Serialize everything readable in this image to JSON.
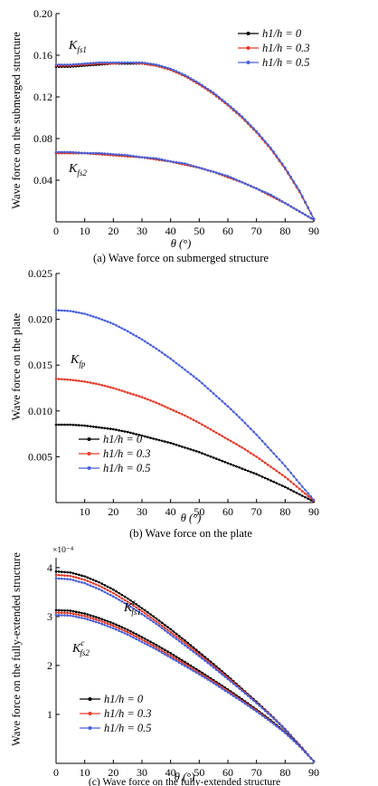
{
  "chart_data": [
    {
      "type": "line",
      "caption": "(a) Wave force on submerged structure",
      "ylabel": "Wave force on the submerged structure",
      "xlabel": "θ (°)",
      "xlim": [
        0,
        90
      ],
      "ylim": [
        0,
        0.2
      ],
      "xticks": [
        0,
        10,
        20,
        30,
        40,
        50,
        60,
        70,
        80,
        90
      ],
      "yticks": [
        0.04,
        0.08,
        0.12,
        0.16,
        0.2
      ],
      "ytick_labels": [
        "0.04",
        "0.08",
        "0.12",
        "0.16",
        "0.20"
      ],
      "grid": false,
      "legend": {
        "position": "top-right",
        "entries": [
          {
            "label": "h1/h = 0",
            "color": "#000000"
          },
          {
            "label": "h1/h = 0.3",
            "color": "#e23b2a"
          },
          {
            "label": "h1/h = 0.5",
            "color": "#4a5fd6"
          }
        ]
      },
      "annotations": [
        {
          "label": "K",
          "sub": "fs1",
          "x": 3,
          "y": 0.163
        },
        {
          "label": "K",
          "sub": "fs2",
          "x": 3,
          "y": 0.047
        }
      ],
      "x": [
        0,
        5,
        10,
        15,
        20,
        25,
        30,
        35,
        40,
        45,
        50,
        55,
        60,
        65,
        70,
        75,
        80,
        85,
        90
      ],
      "series": [
        {
          "name": "h1/h = 0",
          "group": "Kfs1",
          "color": "#000000",
          "values": [
            0.149,
            0.149,
            0.15,
            0.151,
            0.152,
            0.152,
            0.152,
            0.15,
            0.146,
            0.14,
            0.132,
            0.123,
            0.112,
            0.1,
            0.086,
            0.07,
            0.051,
            0.029,
            0.003
          ]
        },
        {
          "name": "h1/h = 0.3",
          "group": "Kfs1",
          "color": "#e23b2a",
          "values": [
            0.15,
            0.15,
            0.151,
            0.152,
            0.152,
            0.153,
            0.152,
            0.15,
            0.146,
            0.14,
            0.132,
            0.123,
            0.112,
            0.1,
            0.086,
            0.07,
            0.051,
            0.029,
            0.003
          ]
        },
        {
          "name": "h1/h = 0.5",
          "group": "Kfs1",
          "color": "#4a5fd6",
          "values": [
            0.151,
            0.151,
            0.152,
            0.153,
            0.153,
            0.153,
            0.153,
            0.151,
            0.147,
            0.141,
            0.133,
            0.124,
            0.113,
            0.101,
            0.087,
            0.071,
            0.052,
            0.03,
            0.003
          ]
        },
        {
          "name": "h1/h = 0",
          "group": "Kfs2",
          "color": "#000000",
          "values": [
            0.066,
            0.066,
            0.066,
            0.065,
            0.064,
            0.063,
            0.062,
            0.06,
            0.058,
            0.055,
            0.052,
            0.048,
            0.043,
            0.038,
            0.032,
            0.025,
            0.018,
            0.01,
            0.002
          ]
        },
        {
          "name": "h1/h = 0.3",
          "group": "Kfs2",
          "color": "#e23b2a",
          "values": [
            0.066,
            0.066,
            0.066,
            0.065,
            0.064,
            0.063,
            0.062,
            0.06,
            0.058,
            0.055,
            0.052,
            0.048,
            0.043,
            0.038,
            0.032,
            0.025,
            0.018,
            0.01,
            0.002
          ]
        },
        {
          "name": "h1/h = 0.5",
          "group": "Kfs2",
          "color": "#4a5fd6",
          "values": [
            0.067,
            0.067,
            0.066,
            0.066,
            0.065,
            0.064,
            0.062,
            0.061,
            0.058,
            0.056,
            0.052,
            0.048,
            0.044,
            0.038,
            0.032,
            0.026,
            0.018,
            0.01,
            0.002
          ]
        }
      ]
    },
    {
      "type": "line",
      "caption": "(b) Wave force on the plate",
      "ylabel": "Wave force on the plate",
      "xlabel": "θ (°)",
      "xlim": [
        0,
        90
      ],
      "ylim": [
        0,
        0.025
      ],
      "xticks": [
        10,
        20,
        30,
        40,
        50,
        60,
        70,
        80,
        90
      ],
      "yticks": [
        0.005,
        0.01,
        0.015,
        0.02,
        0.025
      ],
      "ytick_labels": [
        "0.005",
        "0.010",
        "0.015",
        "0.020",
        "0.025"
      ],
      "grid": false,
      "legend": {
        "position": "bottom-left",
        "entries": [
          {
            "label": "h1/h = 0",
            "color": "#000000"
          },
          {
            "label": "h1/h = 0.3",
            "color": "#e23b2a"
          },
          {
            "label": "h1/h = 0.5",
            "color": "#4a5fd6"
          }
        ]
      },
      "annotations": [
        {
          "label": "K",
          "sub": "fp",
          "x": 4,
          "y": 0.0175
        }
      ],
      "x": [
        0,
        5,
        10,
        15,
        20,
        25,
        30,
        35,
        40,
        45,
        50,
        55,
        60,
        65,
        70,
        75,
        80,
        85,
        90
      ],
      "series": [
        {
          "name": "h1/h = 0",
          "color": "#000000",
          "values": [
            0.0085,
            0.0085,
            0.0084,
            0.0082,
            0.008,
            0.0077,
            0.0073,
            0.0069,
            0.0065,
            0.006,
            0.0055,
            0.0049,
            0.0043,
            0.0037,
            0.0031,
            0.0024,
            0.0017,
            0.0009,
            0.0001
          ]
        },
        {
          "name": "h1/h = 0.3",
          "color": "#e23b2a",
          "values": [
            0.0135,
            0.0134,
            0.0132,
            0.0129,
            0.0125,
            0.012,
            0.0115,
            0.0109,
            0.0102,
            0.0095,
            0.0087,
            0.0078,
            0.0069,
            0.006,
            0.005,
            0.0039,
            0.0028,
            0.0015,
            0.0002
          ]
        },
        {
          "name": "h1/h = 0.5",
          "color": "#4a5fd6",
          "values": [
            0.021,
            0.0209,
            0.0206,
            0.0201,
            0.0195,
            0.0187,
            0.0178,
            0.0168,
            0.0157,
            0.0145,
            0.0133,
            0.0119,
            0.0105,
            0.009,
            0.0074,
            0.0057,
            0.004,
            0.0021,
            0.0003
          ]
        }
      ]
    },
    {
      "type": "line",
      "caption": "(c) Wave force on the fully-extended structure",
      "ylabel": "Wave force on the fully-extended structure",
      "xlabel": "θ (°)",
      "scale_label": "×10⁻⁴",
      "xlim": [
        0,
        90
      ],
      "ylim": [
        0,
        4.2
      ],
      "xticks": [
        0,
        10,
        20,
        30,
        40,
        50,
        60,
        70,
        80,
        90
      ],
      "yticks": [
        1,
        2,
        3,
        4
      ],
      "ytick_labels": [
        "1",
        "2",
        "3",
        "4"
      ],
      "grid": false,
      "legend": {
        "position": "bottom-left",
        "entries": [
          {
            "label": "h1/h = 0",
            "color": "#000000"
          },
          {
            "label": "h1/h = 0.3",
            "color": "#e23b2a"
          },
          {
            "label": "h1/h = 0.5",
            "color": "#4a5fd6"
          }
        ]
      },
      "annotations": [
        {
          "label": "K",
          "sup": "c",
          "sub": "fs1",
          "x": 22,
          "y": 3.45
        },
        {
          "label": "K",
          "sup": "c",
          "sub": "fs2",
          "x": 5,
          "y": 2.75
        }
      ],
      "x": [
        0,
        5,
        10,
        15,
        20,
        25,
        30,
        35,
        40,
        45,
        50,
        55,
        60,
        65,
        70,
        75,
        80,
        85,
        90
      ],
      "series": [
        {
          "name": "h1/h = 0",
          "group": "Kfs1",
          "color": "#000000",
          "values": [
            3.92,
            3.9,
            3.82,
            3.7,
            3.55,
            3.37,
            3.17,
            2.96,
            2.74,
            2.51,
            2.27,
            2.03,
            1.78,
            1.52,
            1.26,
            0.99,
            0.7,
            0.38,
            0.04
          ]
        },
        {
          "name": "h1/h = 0.3",
          "group": "Kfs1",
          "color": "#e23b2a",
          "values": [
            3.85,
            3.83,
            3.75,
            3.63,
            3.48,
            3.3,
            3.11,
            2.9,
            2.68,
            2.46,
            2.23,
            1.99,
            1.75,
            1.5,
            1.24,
            0.98,
            0.69,
            0.38,
            0.04
          ]
        },
        {
          "name": "h1/h = 0.5",
          "group": "Kfs1",
          "color": "#4a5fd6",
          "values": [
            3.78,
            3.76,
            3.68,
            3.56,
            3.41,
            3.24,
            3.05,
            2.85,
            2.63,
            2.41,
            2.19,
            1.96,
            1.72,
            1.48,
            1.23,
            0.97,
            0.69,
            0.37,
            0.04
          ]
        },
        {
          "name": "h1/h = 0",
          "group": "Kfs2",
          "color": "#000000",
          "values": [
            3.13,
            3.12,
            3.06,
            2.97,
            2.86,
            2.73,
            2.58,
            2.42,
            2.25,
            2.07,
            1.89,
            1.7,
            1.51,
            1.31,
            1.1,
            0.88,
            0.64,
            0.36,
            0.04
          ]
        },
        {
          "name": "h1/h = 0.3",
          "group": "Kfs2",
          "color": "#e23b2a",
          "values": [
            3.08,
            3.07,
            3.01,
            2.92,
            2.81,
            2.68,
            2.53,
            2.37,
            2.2,
            2.03,
            1.85,
            1.67,
            1.48,
            1.28,
            1.08,
            0.86,
            0.63,
            0.35,
            0.04
          ]
        },
        {
          "name": "h1/h = 0.5",
          "group": "Kfs2",
          "color": "#4a5fd6",
          "values": [
            3.03,
            3.02,
            2.96,
            2.87,
            2.76,
            2.63,
            2.48,
            2.33,
            2.16,
            1.99,
            1.82,
            1.64,
            1.45,
            1.26,
            1.06,
            0.85,
            0.62,
            0.35,
            0.04
          ]
        }
      ]
    }
  ]
}
